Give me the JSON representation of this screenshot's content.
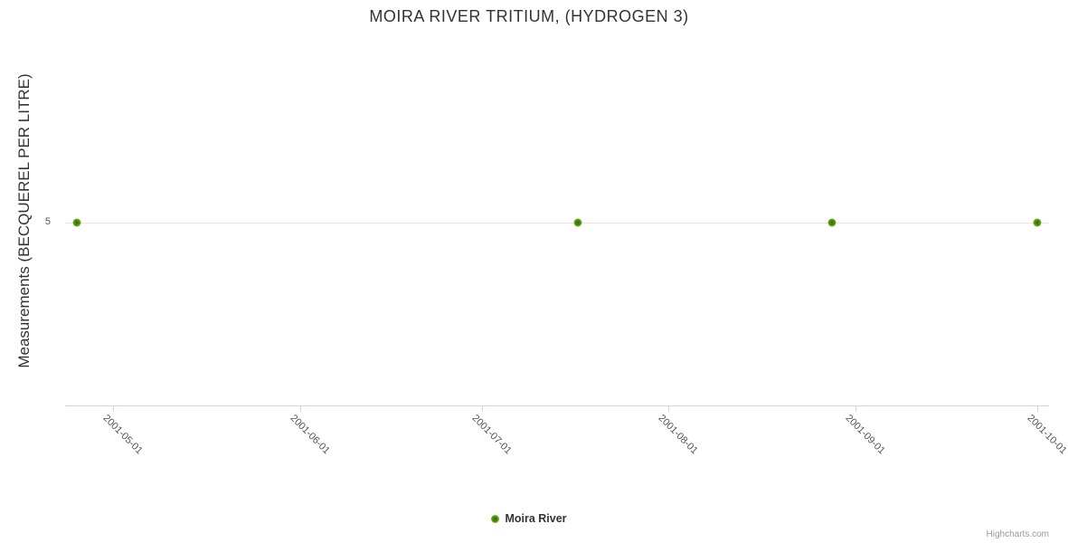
{
  "title": "MOIRA RIVER TRITIUM, (HYDROGEN 3)",
  "y_axis": {
    "title": "Measurements (BECQUEREL PER LITRE)",
    "tick_label": "5",
    "min": 0,
    "max": 10
  },
  "x_axis": {
    "min": "2001-04-23",
    "max": "2001-10-03",
    "ticks": [
      "2001-05-01",
      "2001-06-01",
      "2001-07-01",
      "2001-08-01",
      "2001-09-01",
      "2001-10-01"
    ]
  },
  "legend": {
    "label": "Moira River"
  },
  "credits": "Highcharts.com",
  "colors": {
    "marker_green_outer": "#8ecd37",
    "marker_green_inner": "#356d08",
    "axis_line": "#ccd6eb",
    "gridline": "#e6e6e6",
    "title_text": "#333333",
    "axis_label_text": "#555555",
    "credits_text": "#999999"
  },
  "chart_data": {
    "type": "line",
    "title": "MOIRA RIVER TRITIUM, (HYDROGEN 3)",
    "xlabel": "",
    "ylabel": "Measurements (BECQUEREL PER LITRE)",
    "xlim": [
      "2001-04-23",
      "2001-10-03"
    ],
    "ylim": [
      0,
      10
    ],
    "x_tick_labels": [
      "2001-05-01",
      "2001-06-01",
      "2001-07-01",
      "2001-08-01",
      "2001-09-01",
      "2001-10-01"
    ],
    "y_tick_labels": [
      "5"
    ],
    "grid": "single horizontal gridline at y=5",
    "legend_position": "bottom-center",
    "series": [
      {
        "name": "Moira River",
        "x": [
          "2001-04-25",
          "2001-07-17",
          "2001-08-28",
          "2001-10-01"
        ],
        "values": [
          5,
          5,
          5,
          5
        ]
      }
    ]
  }
}
